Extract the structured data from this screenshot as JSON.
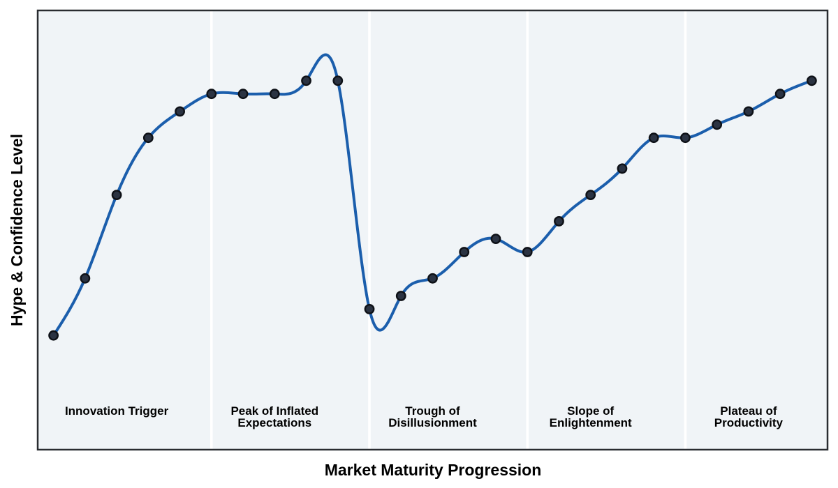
{
  "chart_data": {
    "type": "line",
    "curve": "cubic-spline",
    "marker": "circle",
    "grid": false,
    "legend": "none",
    "xlabel": "Market Maturity Progression",
    "ylabel": "Hype & Confidence Level",
    "xlim": [
      -0.5,
      24.5
    ],
    "ylim": [
      0,
      100
    ],
    "x": [
      0,
      1,
      2,
      3,
      4,
      5,
      6,
      7,
      8,
      9,
      10,
      11,
      12,
      13,
      14,
      15,
      16,
      17,
      18,
      19,
      20,
      21,
      22,
      23,
      24
    ],
    "values": [
      26,
      39,
      58,
      71,
      77,
      81,
      81,
      81,
      84,
      84,
      32,
      35,
      39,
      45,
      48,
      45,
      52,
      58,
      64,
      71,
      71,
      74,
      77,
      81,
      84
    ],
    "phases": [
      {
        "label": "Innovation Trigger",
        "x_start": -0.5,
        "x_end": 5,
        "label_x": 2
      },
      {
        "label": "Peak of Inflated\nExpectations",
        "x_start": 5,
        "x_end": 10,
        "label_x": 7
      },
      {
        "label": "Trough of\nDisillusionment",
        "x_start": 10,
        "x_end": 15,
        "label_x": 12
      },
      {
        "label": "Slope of\nEnlightenment",
        "x_start": 15,
        "x_end": 20,
        "label_x": 17
      },
      {
        "label": "Plateau of\nProductivity",
        "x_start": 20,
        "x_end": 24.5,
        "label_x": 22
      }
    ],
    "colors": {
      "line": "#1b5eac",
      "marker_fill": "#2b3342",
      "marker_edge": "#0e1117",
      "band": "#f0f4f7",
      "divider": "#ffffff",
      "frame": "#292c30",
      "text": "#000000",
      "page_background": "#ffffff"
    }
  }
}
